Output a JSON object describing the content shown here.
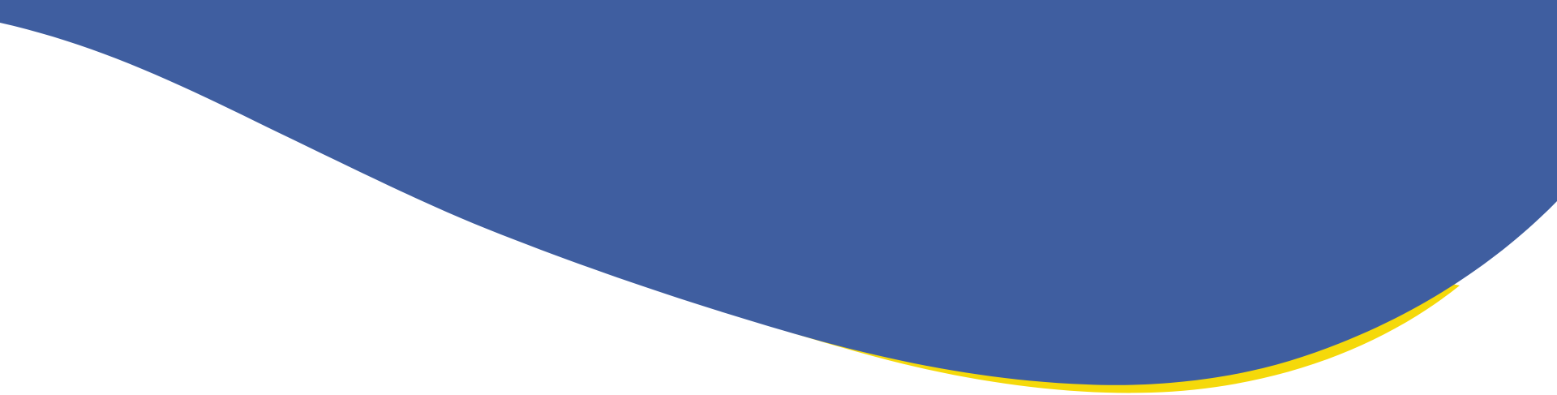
{
  "colors": {
    "background": "#ffffff",
    "wave_primary": "#3f5ea0",
    "wave_accent": "#f5d90a",
    "right_edge_line": "#3f5ea0"
  },
  "shapes": {
    "primary": "blue-wave",
    "accent": "yellow-wave-edge"
  }
}
